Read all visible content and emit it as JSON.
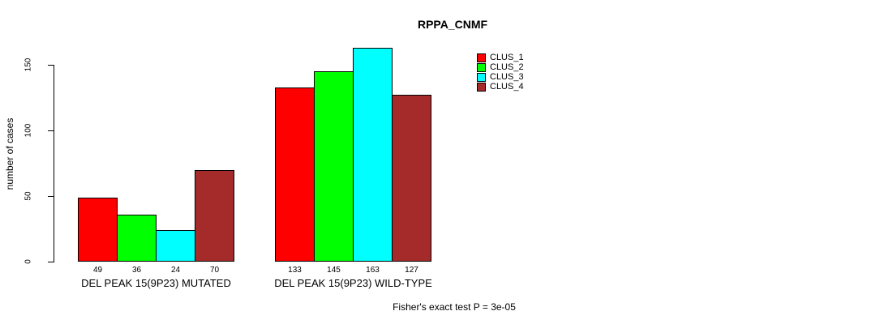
{
  "chart_data": {
    "type": "bar",
    "title": "RPPA_CNMF",
    "xlabel": "",
    "ylabel": "number of cases",
    "ylim": [
      0,
      150
    ],
    "yticks": [
      0,
      50,
      100,
      150
    ],
    "grid": false,
    "legend_position": "top-right",
    "categories": [
      "DEL PEAK 15(9P23) MUTATED",
      "DEL PEAK 15(9P23) WILD-TYPE"
    ],
    "series": [
      {
        "name": "CLUS_1",
        "color": "#ff0000",
        "values": [
          49,
          133
        ]
      },
      {
        "name": "CLUS_2",
        "color": "#00ff00",
        "values": [
          36,
          145
        ]
      },
      {
        "name": "CLUS_3",
        "color": "#00ffff",
        "values": [
          24,
          163
        ]
      },
      {
        "name": "CLUS_4",
        "color": "#a52a2a",
        "values": [
          70,
          127
        ]
      }
    ],
    "bar_value_labels": [
      [
        49,
        36,
        24,
        70
      ],
      [
        133,
        145,
        163,
        127
      ]
    ],
    "annotation": "Fisher's exact test P = 3e-05"
  },
  "colors": {
    "background": "#ffffff",
    "axis": "#000000",
    "text": "#000000"
  }
}
